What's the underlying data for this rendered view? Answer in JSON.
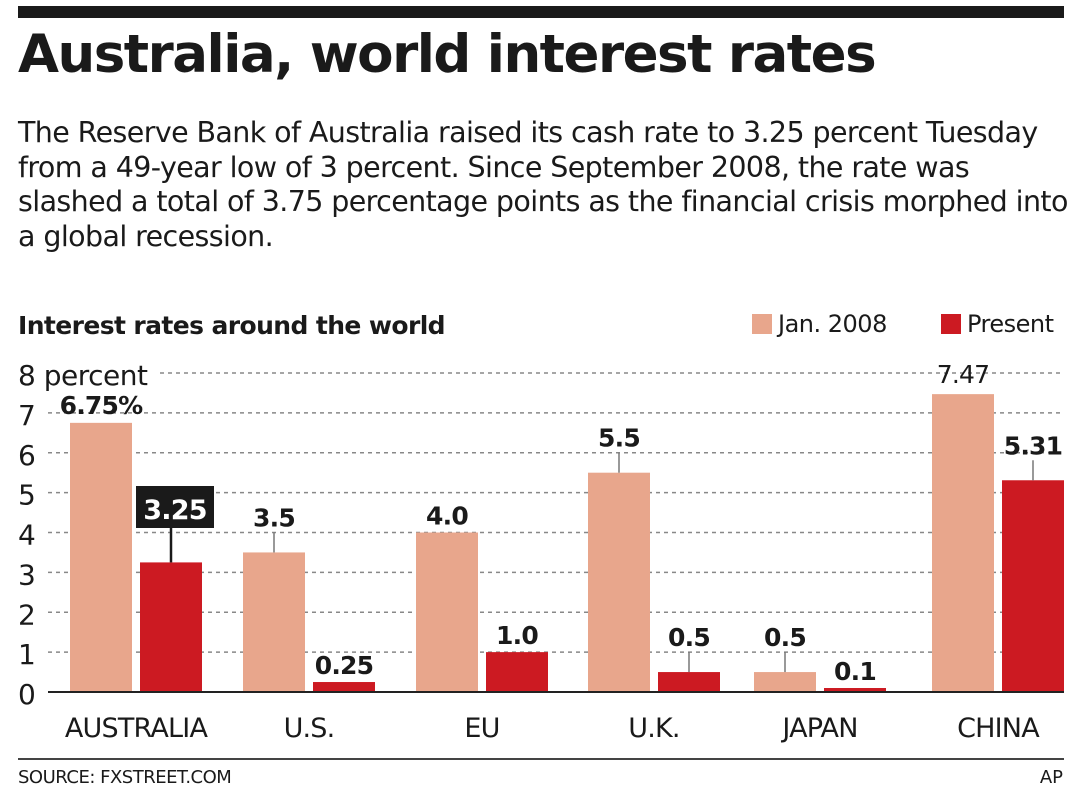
{
  "header": {
    "title": "Australia, world interest rates",
    "dek": "The Reserve Bank of Australia raised its cash rate to 3.25 percent Tuesday from a 49-year low of 3 percent. Since September 2008, the rate was slashed a total of 3.75 percentage points as the financial crisis morphed into a global recession."
  },
  "footer": {
    "source": "SOURCE: FXSTREET.COM",
    "credit": "AP"
  },
  "colors": {
    "jan2008": "#e8a68c",
    "present": "#cc1a22",
    "highlight_box": "#1a1a1a",
    "grid": "#888888",
    "text": "#1a1a1a"
  },
  "chart_data": {
    "type": "bar",
    "title": "Interest rates around the world",
    "xlabel": "",
    "ylabel": "percent",
    "ylim": [
      0,
      8
    ],
    "yticks": [
      0,
      1,
      2,
      3,
      4,
      5,
      6,
      7,
      8
    ],
    "ytick_labels": [
      "0",
      "1",
      "2",
      "3",
      "4",
      "5",
      "6",
      "7",
      "8 percent"
    ],
    "grid": true,
    "legend_position": "top-right",
    "categories": [
      "AUSTRALIA",
      "U.S.",
      "EU",
      "U.K.",
      "JAPAN",
      "CHINA"
    ],
    "series": [
      {
        "name": "Jan. 2008",
        "values": [
          6.75,
          3.5,
          4.0,
          5.5,
          0.5,
          7.47
        ],
        "labels": [
          "6.75%",
          "3.5",
          "4.0",
          "5.5",
          "0.5",
          "7.47"
        ]
      },
      {
        "name": "Present",
        "values": [
          3.25,
          0.25,
          1.0,
          0.5,
          0.1,
          5.31
        ],
        "labels": [
          "3.25",
          "0.25",
          "1.0",
          "0.5",
          "0.1",
          "5.31"
        ]
      }
    ],
    "highlighted": {
      "series": "Present",
      "category": "AUSTRALIA",
      "label": "3.25"
    }
  }
}
